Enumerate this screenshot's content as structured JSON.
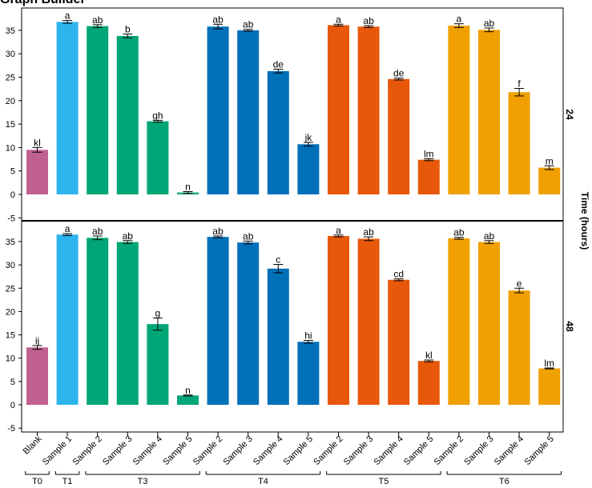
{
  "title": "Graph Builder",
  "chart_data": {
    "type": "bar",
    "ylabel": "",
    "xlabel": "",
    "ylim": [
      -6,
      38
    ],
    "yticks": [
      -5,
      0,
      5,
      10,
      15,
      20,
      25,
      30,
      35
    ],
    "grid": false,
    "legend": "none",
    "panel_group_label": "Time (hours)",
    "categories": [
      "Blank",
      "Sample 1",
      "Sample 2",
      "Sample 3",
      "Sample 4",
      "Sample 5",
      "Sample 2",
      "Sample 3",
      "Sample 4",
      "Sample 5",
      "Sample 2",
      "Sample 3",
      "Sample 4",
      "Sample 5",
      "Sample 2",
      "Sample 3",
      "Sample 4",
      "Sample 5"
    ],
    "bar_groups": [
      "T0",
      "T1",
      "T3",
      "T3",
      "T3",
      "T3",
      "T4",
      "T4",
      "T4",
      "T4",
      "T5",
      "T5",
      "T5",
      "T5",
      "T6",
      "T6",
      "T6",
      "T6"
    ],
    "groups": [
      {
        "label": "T0",
        "color": "#C06090"
      },
      {
        "label": "T1",
        "color": "#2EB4EC"
      },
      {
        "label": "T3",
        "color": "#00A676"
      },
      {
        "label": "T4",
        "color": "#0070B8"
      },
      {
        "label": "T5",
        "color": "#E8580A"
      },
      {
        "label": "T6",
        "color": "#F0A000"
      }
    ],
    "panels": [
      {
        "label": "24",
        "values": [
          9.5,
          36.8,
          35.9,
          33.8,
          15.6,
          0.4,
          35.8,
          35.0,
          26.3,
          10.7,
          36.1,
          35.8,
          24.6,
          7.4,
          36.0,
          35.1,
          21.8,
          5.7
        ],
        "errors": [
          0.5,
          0.3,
          0.3,
          0.4,
          0.2,
          0.2,
          0.5,
          0.2,
          0.4,
          0.4,
          0.2,
          0.2,
          0.2,
          0.2,
          0.4,
          0.4,
          0.8,
          0.4
        ],
        "letters": [
          "kl",
          "a",
          "ab",
          "b",
          "gh",
          "n",
          "ab",
          "ab",
          "de",
          "jk",
          "a",
          "ab",
          "de",
          "lm",
          "a",
          "ab",
          "f",
          "m"
        ]
      },
      {
        "label": "48",
        "values": [
          12.3,
          36.5,
          35.8,
          34.9,
          17.3,
          2.0,
          36.0,
          34.8,
          29.2,
          13.5,
          36.2,
          35.6,
          26.8,
          9.4,
          35.7,
          34.9,
          24.5,
          7.8
        ],
        "errors": [
          0.4,
          0.2,
          0.4,
          0.3,
          1.3,
          0.1,
          0.2,
          0.3,
          0.9,
          0.3,
          0.2,
          0.4,
          0.2,
          0.2,
          0.2,
          0.3,
          0.5,
          0.1
        ],
        "letters": [
          "ij",
          "a",
          "ab",
          "ab",
          "g",
          "n",
          "ab",
          "ab",
          "c",
          "hi",
          "a",
          "ab",
          "cd",
          "kl",
          "ab",
          "ab",
          "e",
          "lm"
        ]
      }
    ]
  }
}
